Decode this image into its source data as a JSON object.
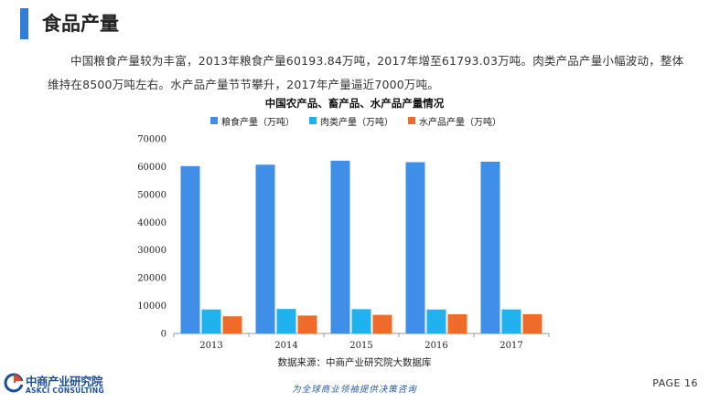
{
  "header": {
    "title": "食品产量",
    "accent_color": "#2f7ed8"
  },
  "description": "中国粮食产量较为丰富，2013年粮食产量60193.84万吨，2017年增至61793.03万吨。肉类产品产量小幅波动，整体维持在8500万吨左右。水产品产量节节攀升，2017年产量逼近7000万吨。",
  "chart_data": {
    "type": "bar",
    "title": "中国农产品、畜产品、水产品产量情况",
    "categories": [
      "2013",
      "2014",
      "2015",
      "2016",
      "2017"
    ],
    "series": [
      {
        "name": "粮食产量（万吨）",
        "color": "#3f8fe8",
        "values": [
          60193.84,
          60703,
          62144,
          61625,
          61793.03
        ]
      },
      {
        "name": "肉类产量（万吨）",
        "color": "#1fb2ef",
        "values": [
          8633,
          8818,
          8750,
          8628,
          8654
        ]
      },
      {
        "name": "水产品产量（万吨）",
        "color": "#ef6b2a",
        "values": [
          6172,
          6450,
          6699,
          6901,
          6938
        ]
      }
    ],
    "ylim": [
      0,
      70000
    ],
    "yticks": [
      "0",
      "10000",
      "20000",
      "30000",
      "40000",
      "50000",
      "60000",
      "70000"
    ],
    "xlabel": "",
    "ylabel": "",
    "grid": false,
    "legend_position": "top"
  },
  "source": "数据来源：中商产业研究院大数据库",
  "logo": {
    "name": "中商产业研究院",
    "sub": "ASKCI CONSULTING"
  },
  "footer": {
    "slogan": "为全球商业领袖提供决策咨询",
    "page_label": "PAGE 16"
  }
}
